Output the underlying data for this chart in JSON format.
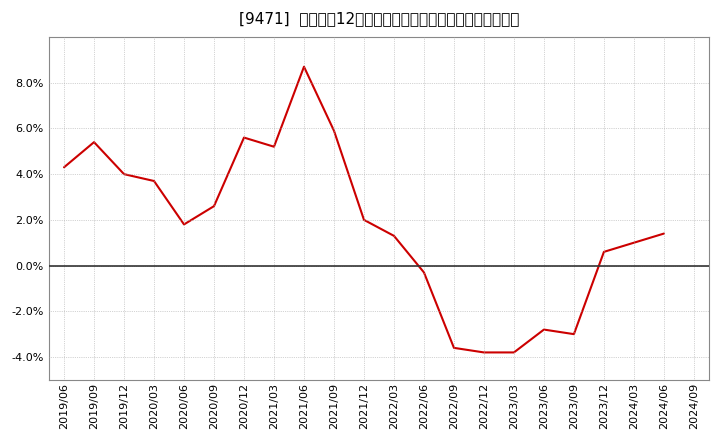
{
  "title": "[9471]  売上高の12か月移動合計の対前年同期増減率の推移",
  "line_color": "#cc0000",
  "background_color": "#ffffff",
  "plot_bg_color": "#ffffff",
  "grid_color": "#aaaaaa",
  "zero_line_color": "#333333",
  "ylim": [
    -0.05,
    0.1
  ],
  "yticks": [
    -0.04,
    -0.02,
    0.0,
    0.02,
    0.04,
    0.06,
    0.08
  ],
  "dates": [
    "2019/06",
    "2019/09",
    "2019/12",
    "2020/03",
    "2020/06",
    "2020/09",
    "2020/12",
    "2021/03",
    "2021/06",
    "2021/09",
    "2021/12",
    "2022/03",
    "2022/06",
    "2022/09",
    "2022/12",
    "2023/03",
    "2023/06",
    "2023/09",
    "2023/12",
    "2024/03",
    "2024/06",
    "2024/09"
  ],
  "values": [
    0.043,
    0.054,
    0.04,
    0.037,
    0.018,
    0.026,
    0.056,
    0.052,
    0.087,
    0.059,
    0.02,
    0.013,
    -0.003,
    -0.036,
    -0.038,
    -0.038,
    -0.028,
    -0.03,
    0.006,
    0.01,
    0.014,
    null
  ],
  "xtick_labels": [
    "2019/06",
    "2019/09",
    "2019/12",
    "2020/03",
    "2020/06",
    "2020/09",
    "2020/12",
    "2021/03",
    "2021/06",
    "2021/09",
    "2021/12",
    "2022/03",
    "2022/06",
    "2022/09",
    "2022/12",
    "2023/03",
    "2023/06",
    "2023/09",
    "2023/12",
    "2024/03",
    "2024/06",
    "2024/09"
  ],
  "title_fontsize": 11,
  "tick_fontsize": 8,
  "linewidth": 1.5
}
